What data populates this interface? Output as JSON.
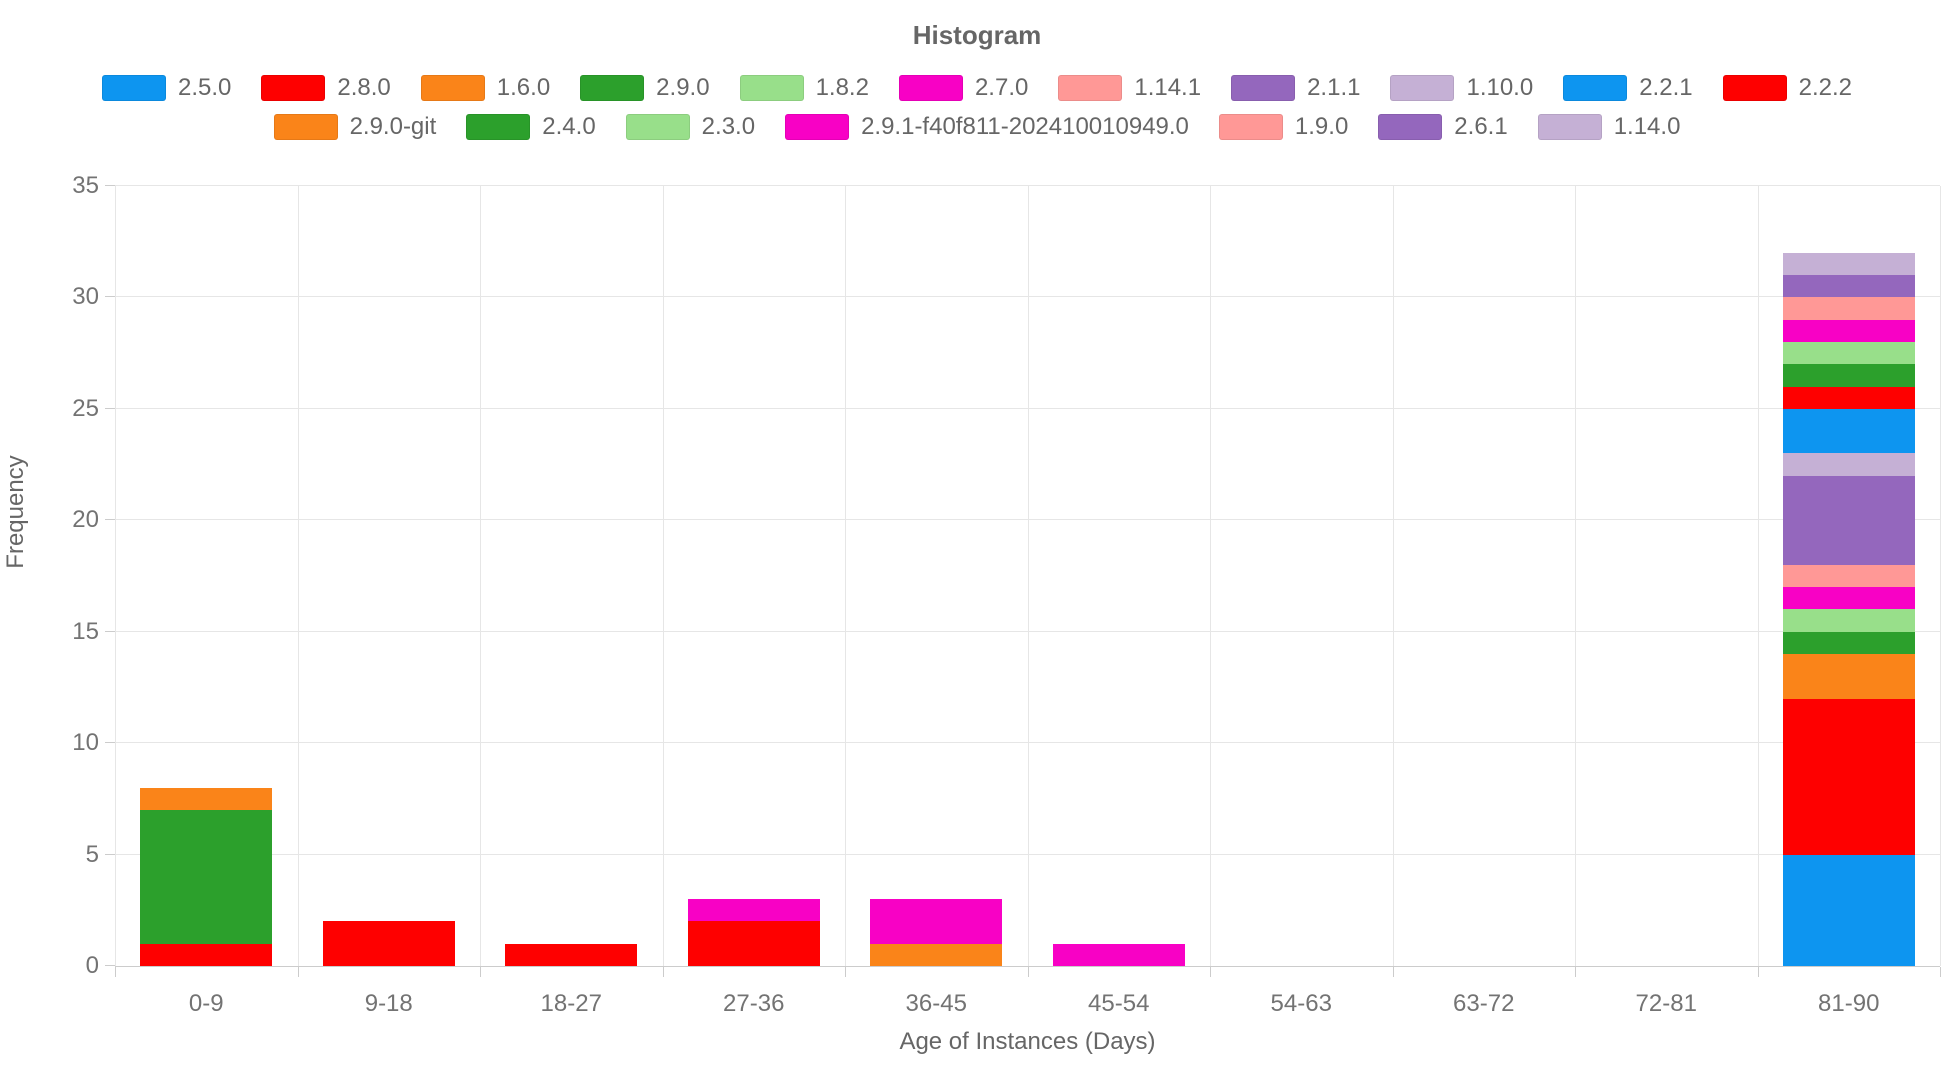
{
  "title": "Histogram",
  "colors": {
    "grid": "#e6e6e6",
    "axis": "#cccccc",
    "tick_text": "#737373",
    "label_text": "#666666"
  },
  "chart_data": {
    "type": "bar",
    "stacked": true,
    "title": "Histogram",
    "xlabel": "Age of Instances (Days)",
    "ylabel": "Frequency",
    "categories": [
      "0-9",
      "9-18",
      "18-27",
      "27-36",
      "36-45",
      "45-54",
      "54-63",
      "63-72",
      "72-81",
      "81-90"
    ],
    "ylim": [
      0,
      35
    ],
    "y_ticks": [
      0,
      5,
      10,
      15,
      20,
      25,
      30,
      35
    ],
    "grid": true,
    "legend_position": "top",
    "legend_rows": [
      [
        "2.5.0",
        "2.8.0",
        "1.6.0",
        "2.9.0",
        "1.8.2",
        "2.7.0",
        "1.14.1",
        "2.1.1",
        "1.10.0",
        "2.2.1",
        "2.2.2"
      ],
      [
        "2.9.0-git",
        "2.4.0",
        "2.3.0",
        "2.9.1-f40f811-202410010949.0",
        "1.9.0",
        "2.6.1",
        "1.14.0"
      ]
    ],
    "series": [
      {
        "name": "2.5.0",
        "color": "#0d95f0",
        "values": [
          0,
          0,
          0,
          0,
          0,
          0,
          0,
          0,
          0,
          5
        ]
      },
      {
        "name": "2.8.0",
        "color": "#fe0000",
        "values": [
          1,
          2,
          1,
          2,
          0,
          0,
          0,
          0,
          0,
          7
        ]
      },
      {
        "name": "1.6.0",
        "color": "#fa8419",
        "values": [
          0,
          0,
          0,
          0,
          1,
          0,
          0,
          0,
          0,
          2
        ]
      },
      {
        "name": "2.9.0",
        "color": "#2ca02c",
        "values": [
          6,
          0,
          0,
          0,
          0,
          0,
          0,
          0,
          0,
          1
        ]
      },
      {
        "name": "1.8.2",
        "color": "#98df8a",
        "values": [
          0,
          0,
          0,
          0,
          0,
          0,
          0,
          0,
          0,
          1
        ]
      },
      {
        "name": "2.7.0",
        "color": "#f801c5",
        "values": [
          0,
          0,
          0,
          1,
          2,
          1,
          0,
          0,
          0,
          1
        ]
      },
      {
        "name": "1.14.1",
        "color": "#ff9896",
        "values": [
          0,
          0,
          0,
          0,
          0,
          0,
          0,
          0,
          0,
          1
        ]
      },
      {
        "name": "2.1.1",
        "color": "#9467bd",
        "values": [
          0,
          0,
          0,
          0,
          0,
          0,
          0,
          0,
          0,
          4
        ]
      },
      {
        "name": "1.10.0",
        "color": "#c5b0d5",
        "values": [
          0,
          0,
          0,
          0,
          0,
          0,
          0,
          0,
          0,
          1
        ]
      },
      {
        "name": "2.2.1",
        "color": "#0d95f0",
        "values": [
          0,
          0,
          0,
          0,
          0,
          0,
          0,
          0,
          0,
          2
        ]
      },
      {
        "name": "2.2.2",
        "color": "#fe0000",
        "values": [
          0,
          0,
          0,
          0,
          0,
          0,
          0,
          0,
          0,
          1
        ]
      },
      {
        "name": "2.9.0-git",
        "color": "#fa8419",
        "values": [
          1,
          0,
          0,
          0,
          0,
          0,
          0,
          0,
          0,
          0
        ]
      },
      {
        "name": "2.4.0",
        "color": "#2ca02c",
        "values": [
          0,
          0,
          0,
          0,
          0,
          0,
          0,
          0,
          0,
          1
        ]
      },
      {
        "name": "2.3.0",
        "color": "#98df8a",
        "values": [
          0,
          0,
          0,
          0,
          0,
          0,
          0,
          0,
          0,
          1
        ]
      },
      {
        "name": "2.9.1-f40f811-202410010949.0",
        "color": "#f801c5",
        "values": [
          0,
          0,
          0,
          0,
          0,
          0,
          0,
          0,
          0,
          1
        ]
      },
      {
        "name": "1.9.0",
        "color": "#ff9896",
        "values": [
          0,
          0,
          0,
          0,
          0,
          0,
          0,
          0,
          0,
          1
        ]
      },
      {
        "name": "2.6.1",
        "color": "#9467bd",
        "values": [
          0,
          0,
          0,
          0,
          0,
          0,
          0,
          0,
          0,
          1
        ]
      },
      {
        "name": "1.14.0",
        "color": "#c5b0d5",
        "values": [
          0,
          0,
          0,
          0,
          0,
          0,
          0,
          0,
          0,
          1
        ]
      }
    ]
  }
}
